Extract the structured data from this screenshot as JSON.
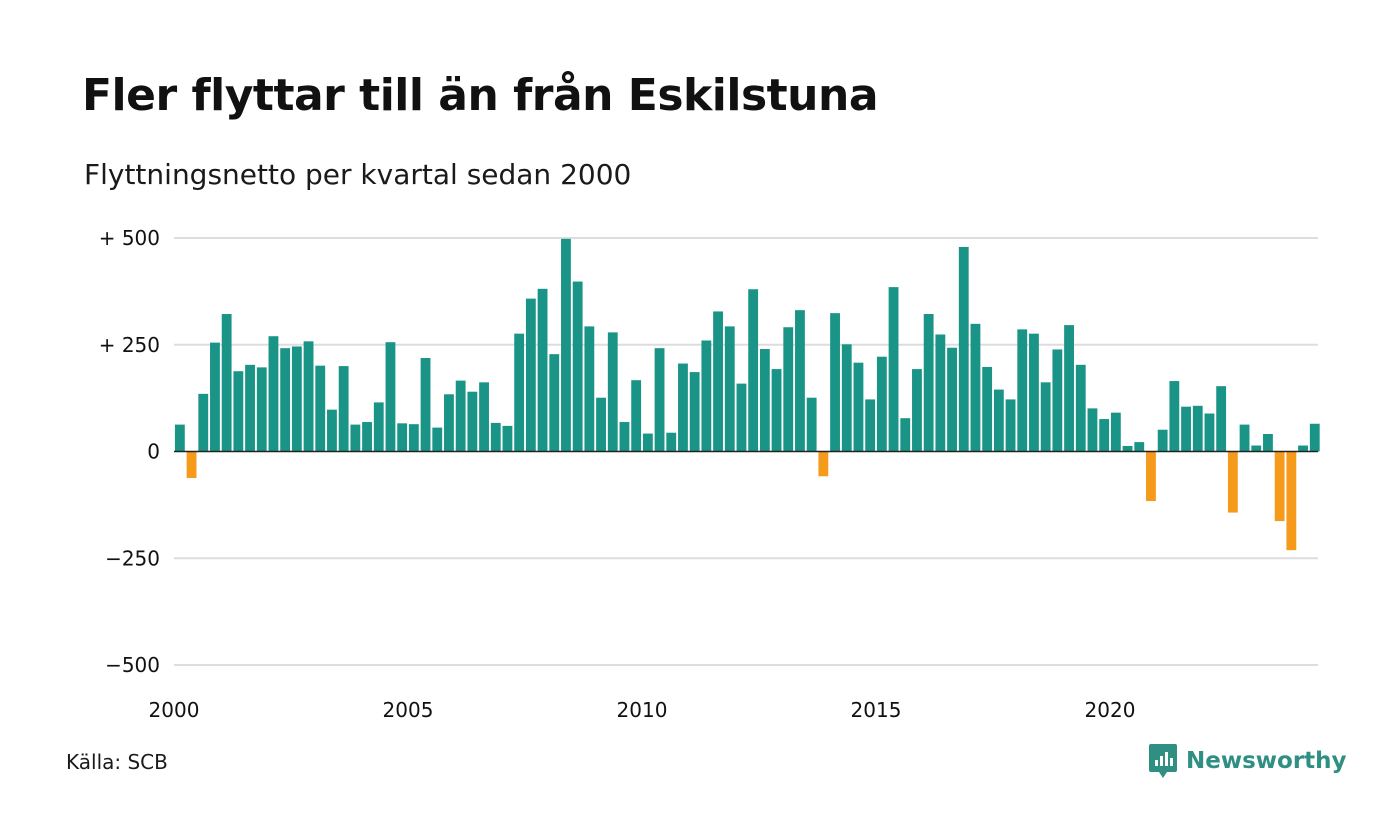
{
  "title": "Fler flyttar till än från Eskilstuna",
  "subtitle": "Flyttningsnetto per kvartal sedan 2000",
  "source": "Källa: SCB",
  "brand": {
    "name": "Newsworthy",
    "icon": "newsworthy-logo-icon"
  },
  "colors": {
    "positive": "#1a9487",
    "negative": "#f59a1b",
    "grid": "#dddddd",
    "axis": "#222222",
    "brand": "#2f8f83"
  },
  "chart_data": {
    "type": "bar",
    "title": "Fler flyttar till än från Eskilstuna",
    "subtitle": "Flyttningsnetto per kvartal sedan 2000",
    "xlabel": "",
    "ylabel": "",
    "x_start": 2000,
    "periods_per_year": 4,
    "ylim": [
      -500,
      500
    ],
    "y_ticks": [
      500,
      250,
      0,
      -250,
      -500
    ],
    "y_tick_labels": [
      "+ 500",
      "+ 250",
      "0",
      "−250",
      "−500"
    ],
    "x_ticks": [
      2000,
      2005,
      2010,
      2015,
      2020
    ],
    "x_tick_labels": [
      "2000",
      "2005",
      "2010",
      "2015",
      "2020"
    ],
    "grid": true,
    "values": [
      63,
      -62,
      135,
      255,
      322,
      188,
      203,
      197,
      270,
      242,
      246,
      258,
      201,
      98,
      200,
      63,
      69,
      115,
      256,
      66,
      64,
      219,
      56,
      134,
      166,
      140,
      162,
      67,
      60,
      276,
      358,
      381,
      228,
      498,
      398,
      293,
      126,
      279,
      69,
      167,
      42,
      242,
      44,
      206,
      186,
      260,
      328,
      293,
      159,
      380,
      240,
      193,
      291,
      331,
      126,
      -58,
      324,
      251,
      208,
      122,
      222,
      385,
      78,
      193,
      322,
      274,
      243,
      479,
      299,
      198,
      145,
      122,
      286,
      276,
      162,
      239,
      296,
      203,
      101,
      76,
      91,
      13,
      22,
      -116,
      51,
      165,
      105,
      107,
      89,
      153,
      -143,
      63,
      14,
      41,
      -163,
      -231,
      14,
      65
    ]
  }
}
